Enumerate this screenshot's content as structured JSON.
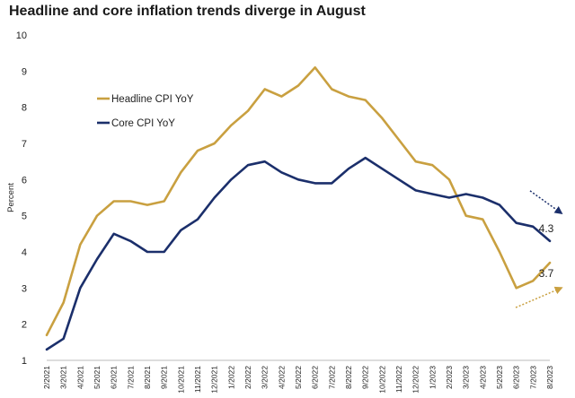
{
  "title": "Headline and core inflation trends diverge in August",
  "chart_data": {
    "type": "line",
    "ylabel": "Percent",
    "ylim": [
      1,
      10
    ],
    "yticks": [
      1,
      2,
      3,
      4,
      5,
      6,
      7,
      8,
      9,
      10
    ],
    "grid": false,
    "legend_position": "upper-left",
    "categories": [
      "2/2021",
      "3/2021",
      "4/2021",
      "5/2021",
      "6/2021",
      "7/2021",
      "8/2021",
      "9/2021",
      "10/2021",
      "11/2021",
      "12/2021",
      "1/2022",
      "2/2022",
      "3/2022",
      "4/2022",
      "5/2022",
      "6/2022",
      "7/2022",
      "8/2022",
      "9/2022",
      "10/2022",
      "11/2022",
      "12/2022",
      "1/2023",
      "2/2023",
      "3/2023",
      "4/2023",
      "5/2023",
      "6/2023",
      "7/2023",
      "8/2023"
    ],
    "series": [
      {
        "name": "Headline CPI YoY",
        "color": "#c9a040",
        "values": [
          1.7,
          2.6,
          4.2,
          5.0,
          5.4,
          5.4,
          5.3,
          5.4,
          6.2,
          6.8,
          7.0,
          7.5,
          7.9,
          8.5,
          8.3,
          8.6,
          9.1,
          8.5,
          8.3,
          8.2,
          7.7,
          7.1,
          6.5,
          6.4,
          6.0,
          5.0,
          4.9,
          4.0,
          3.0,
          3.2,
          3.7
        ],
        "end_label": "3.7",
        "trend_arrow": "up"
      },
      {
        "name": "Core CPI YoY",
        "color": "#1b2f6b",
        "values": [
          1.3,
          1.6,
          3.0,
          3.8,
          4.5,
          4.3,
          4.0,
          4.0,
          4.6,
          4.9,
          5.5,
          6.0,
          6.4,
          6.5,
          6.2,
          6.0,
          5.9,
          5.9,
          6.3,
          6.6,
          6.3,
          6.0,
          5.7,
          5.6,
          5.5,
          5.6,
          5.5,
          5.3,
          4.8,
          4.7,
          4.3
        ],
        "end_label": "4.3",
        "trend_arrow": "down"
      }
    ]
  }
}
